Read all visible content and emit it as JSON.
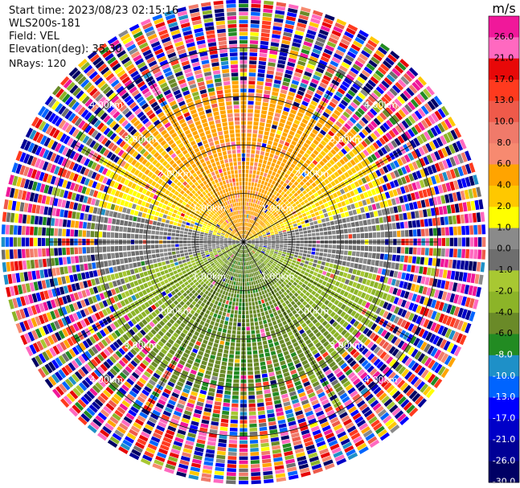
{
  "header": {
    "start_time": "Start time: 2023/08/23 02:15:16",
    "instrument": "WLS200s-181",
    "field": "Field: VEL",
    "elevation": "Elevation(deg): 35.30",
    "nrays": "NRays: 120"
  },
  "chart_data": {
    "type": "heatmap",
    "projection": "polar (PPI scan)",
    "field": "VEL",
    "units": "m/s",
    "n_rays": 120,
    "elevation_deg": 35.3,
    "range_rings": [
      {
        "km": 1.0,
        "label": "1.00km"
      },
      {
        "km": 2.0,
        "label": "2.00km"
      },
      {
        "km": 3.0,
        "label": "3.00km"
      },
      {
        "km": 4.0,
        "label": "4.00km"
      }
    ],
    "max_range_km": 5.0,
    "spoke_interval_deg": 30,
    "colorbar": {
      "unit_label": "m/s",
      "ticks": [
        "26.0",
        "21.0",
        "17.0",
        "13.0",
        "10.0",
        "8.0",
        "6.0",
        "4.0",
        "2.0",
        "1.0",
        "0.0",
        "-1.0",
        "-2.0",
        "-4.0",
        "-6.0",
        "-8.0",
        "-10.0",
        "-13.0",
        "-17.0",
        "-21.0",
        "-26.0",
        "-30.0"
      ],
      "bins": [
        {
          "min": 26,
          "max": 30,
          "color": "#f0189a"
        },
        {
          "min": 21,
          "max": 26,
          "color": "#ff69c0"
        },
        {
          "min": 17,
          "max": 21,
          "color": "#e80808"
        },
        {
          "min": 13,
          "max": 17,
          "color": "#ff3a1e"
        },
        {
          "min": 10,
          "max": 13,
          "color": "#ef5a4a"
        },
        {
          "min": 8,
          "max": 10,
          "color": "#f07a6a"
        },
        {
          "min": 6,
          "max": 8,
          "color": "#f78a70"
        },
        {
          "min": 4,
          "max": 6,
          "color": "#ffa400"
        },
        {
          "min": 2,
          "max": 4,
          "color": "#ffc800"
        },
        {
          "min": 1,
          "max": 2,
          "color": "#ffff00"
        },
        {
          "min": 0,
          "max": 1,
          "color": "#8a8a8a"
        },
        {
          "min": -1,
          "max": 0,
          "color": "#6e6e6e"
        },
        {
          "min": -2,
          "max": -1,
          "color": "#a8c832"
        },
        {
          "min": -4,
          "max": -2,
          "color": "#8cb428"
        },
        {
          "min": -6,
          "max": -4,
          "color": "#6a8a28"
        },
        {
          "min": -8,
          "max": -6,
          "color": "#228b22"
        },
        {
          "min": -10,
          "max": -8,
          "color": "#1e90c8"
        },
        {
          "min": -13,
          "max": -10,
          "color": "#0064ff"
        },
        {
          "min": -17,
          "max": -13,
          "color": "#0000ff"
        },
        {
          "min": -21,
          "max": -17,
          "color": "#0000c8"
        },
        {
          "min": -26,
          "max": -21,
          "color": "#000096"
        },
        {
          "min": -30,
          "max": -26,
          "color": "#000064"
        }
      ]
    },
    "pattern": {
      "near_range_north": "positive velocities 2 to 6 m/s (yellow/orange)",
      "near_range_east_west": "near-zero velocities -1 to 1 m/s (grey)",
      "near_range_south": "negative velocities -2 to -8 m/s (green)",
      "far_range": "noisy / aliased values across all bins beyond ~3 km"
    }
  }
}
